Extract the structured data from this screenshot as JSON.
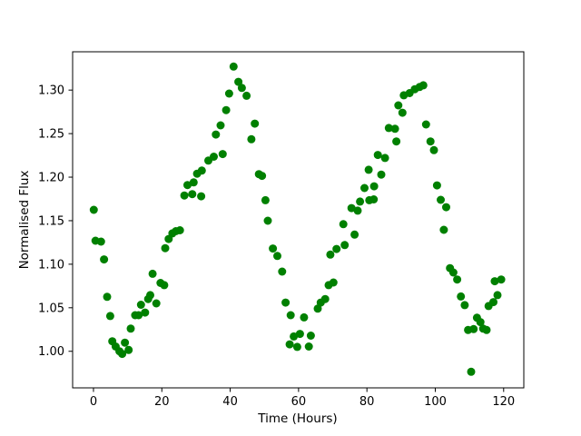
{
  "chart_data": {
    "type": "scatter",
    "title": "",
    "xlabel": "Time (Hours)",
    "ylabel": "Normalised Flux",
    "xlim": [
      -6.1,
      125.9
    ],
    "ylim": [
      0.958,
      1.344
    ],
    "xticks": [
      0,
      20,
      40,
      60,
      80,
      100,
      120
    ],
    "yticks": [
      1.0,
      1.05,
      1.1,
      1.15,
      1.2,
      1.25,
      1.3
    ],
    "grid": false,
    "legend": null,
    "background_color": "#ffffff",
    "axes_frame_color": "#000000",
    "marker": {
      "shape": "circle",
      "color": "#008000",
      "radius_px": 4.5
    },
    "x": [
      0.1,
      0.6,
      2.2,
      3.1,
      4.0,
      4.9,
      5.5,
      6.5,
      7.6,
      8.4,
      9.2,
      10.3,
      10.9,
      12.2,
      13.2,
      13.9,
      15.1,
      16.0,
      16.6,
      17.3,
      18.4,
      19.6,
      20.7,
      21.0,
      22.0,
      23.1,
      24.1,
      25.3,
      26.6,
      27.5,
      28.9,
      29.3,
      30.3,
      31.5,
      31.7,
      33.6,
      35.2,
      35.8,
      37.2,
      37.8,
      38.8,
      39.7,
      41.0,
      42.4,
      43.4,
      44.8,
      46.2,
      47.2,
      48.4,
      49.3,
      50.3,
      51.0,
      52.5,
      53.8,
      55.2,
      56.2,
      57.4,
      57.7,
      58.6,
      59.6,
      60.4,
      61.6,
      63.0,
      63.6,
      65.6,
      66.5,
      67.8,
      68.8,
      69.3,
      70.2,
      71.1,
      73.1,
      73.5,
      75.5,
      76.4,
      77.3,
      78.0,
      79.3,
      80.5,
      80.7,
      82.0,
      82.1,
      83.2,
      84.2,
      85.3,
      86.4,
      88.2,
      88.6,
      89.2,
      90.4,
      90.8,
      92.5,
      94.0,
      95.4,
      96.5,
      97.3,
      98.6,
      99.6,
      100.5,
      101.6,
      102.5,
      103.2,
      104.3,
      105.3,
      106.4,
      107.5,
      108.6,
      109.6,
      110.5,
      111.2,
      112.2,
      113.2,
      114.0,
      115.0,
      115.6,
      117.0,
      117.4,
      118.2,
      119.3
    ],
    "y": [
      1.1625,
      1.127,
      1.126,
      1.1055,
      1.0625,
      1.0405,
      1.0115,
      1.0055,
      1.0,
      0.997,
      1.01,
      1.0015,
      1.026,
      1.0415,
      1.0415,
      1.0535,
      1.0445,
      1.06,
      1.0645,
      1.089,
      1.055,
      1.0785,
      1.076,
      1.1185,
      1.129,
      1.1355,
      1.138,
      1.139,
      1.179,
      1.191,
      1.1805,
      1.194,
      1.204,
      1.178,
      1.2075,
      1.219,
      1.2235,
      1.249,
      1.2595,
      1.2265,
      1.277,
      1.296,
      1.327,
      1.3095,
      1.3025,
      1.2935,
      1.2435,
      1.2615,
      1.2035,
      1.2015,
      1.1735,
      1.15,
      1.118,
      1.1095,
      1.0915,
      1.056,
      1.008,
      1.0415,
      1.017,
      1.005,
      1.02,
      1.039,
      1.0055,
      1.018,
      1.049,
      1.056,
      1.06,
      1.076,
      1.111,
      1.079,
      1.1175,
      1.146,
      1.122,
      1.1645,
      1.134,
      1.1615,
      1.172,
      1.1875,
      1.2085,
      1.1735,
      1.1745,
      1.1895,
      1.2255,
      1.203,
      1.222,
      1.2565,
      1.2555,
      1.241,
      1.2825,
      1.274,
      1.294,
      1.2965,
      1.301,
      1.3035,
      1.3055,
      1.2605,
      1.241,
      1.231,
      1.1905,
      1.174,
      1.1395,
      1.1655,
      1.0955,
      1.0905,
      1.0825,
      1.063,
      1.053,
      1.0245,
      0.9765,
      1.0255,
      1.0385,
      1.0335,
      1.026,
      1.0245,
      1.052,
      1.0565,
      1.0805,
      1.0645,
      1.0825
    ]
  }
}
